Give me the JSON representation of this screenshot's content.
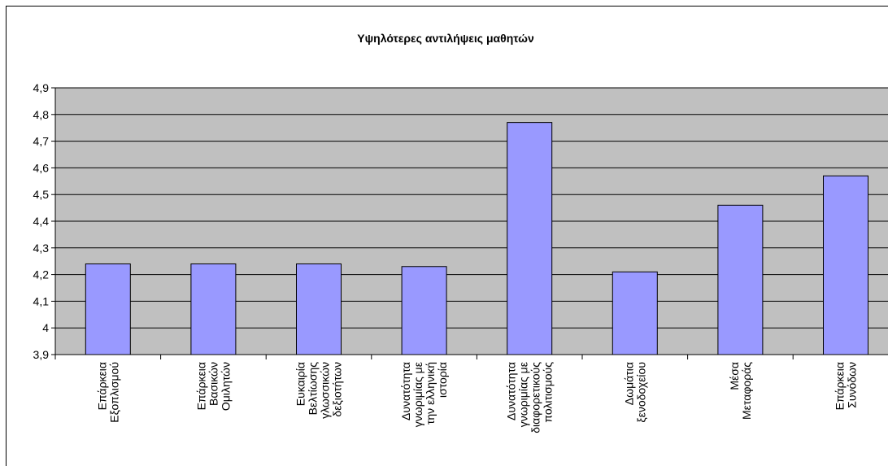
{
  "chart_data": {
    "type": "bar",
    "title": "Υψηλότερες αντιλήψεις μαθητών",
    "categories": [
      "Επάρκεια\nΕξοπλισμού",
      "Επάρκεια\nΒασικών\nΟμιλητών",
      "Ευκαιρία\nΒελτίωσης\nγλωσσικών\nδεξιοτήτων",
      "Δυνατότητα\nγνωριμίας με\nτην ελληνική\nιστορία",
      "Δυνατότητα\nγνωριμίας με\nδιαφορετικούς\nπολιτισμούς",
      "Δωμάτια\nξενοδοχείου",
      "Μέσα\nΜεταφοράς",
      "Επάρκεια\nΣυνόδων"
    ],
    "values": [
      4.24,
      4.24,
      4.24,
      4.23,
      4.77,
      4.21,
      4.46,
      4.57
    ],
    "color": "#9999ff",
    "ylim": [
      3.9,
      4.9
    ],
    "yticks": [
      {
        "value": 3.9,
        "label": "3,9"
      },
      4,
      {
        "value": 4.1,
        "label": "4,1"
      },
      {
        "value": 4.2,
        "label": "4,2"
      },
      {
        "value": 4.3,
        "label": "4,3"
      },
      {
        "value": 4.4,
        "label": "4,4"
      },
      {
        "value": 4.5,
        "label": "4,5"
      },
      {
        "value": 4.6,
        "label": "4,6"
      },
      {
        "value": 4.7,
        "label": "4,7"
      },
      {
        "value": 4.8,
        "label": "4,8"
      },
      {
        "value": 4.9,
        "label": "4,9"
      }
    ],
    "grid": true
  }
}
